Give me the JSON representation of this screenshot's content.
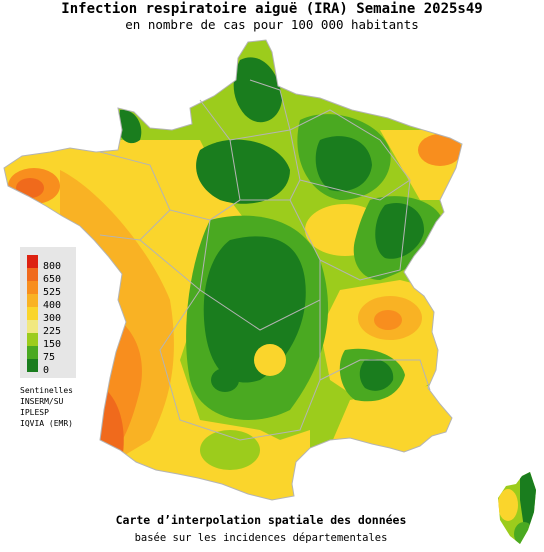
{
  "title": "Infection respiratoire aiguë (IRA) Semaine 2025s49",
  "subtitle": "en nombre de cas pour 100 000 habitants",
  "legend": [
    {
      "label": "800",
      "color": "#dd2211"
    },
    {
      "label": "650",
      "color": "#f06a1c"
    },
    {
      "label": "525",
      "color": "#f88e1e"
    },
    {
      "label": "400",
      "color": "#f9b224"
    },
    {
      "label": "300",
      "color": "#fad52c"
    },
    {
      "label": "225",
      "color": "#f1e880"
    },
    {
      "label": "150",
      "color": "#9ccc1c"
    },
    {
      "label": "75",
      "color": "#4aa921"
    },
    {
      "label": "0",
      "color": "#1a7d1e"
    }
  ],
  "sources": [
    "Sentinelles",
    "INSERM/SU",
    "IPLESP",
    "IQVIA (EMR)"
  ],
  "footer_title": "Carte d’interpolation spatiale des données",
  "footer_subtitle": "basée sur les incidences départementales",
  "colors": {
    "dark_green": "#1a7d1e",
    "green": "#4aa921",
    "light_green": "#9ccc1c",
    "yellow": "#fad52c",
    "light_yellow": "#f1e880",
    "light_orange": "#f9b224",
    "orange": "#f88e1e",
    "dark_orange": "#f06a1c",
    "red": "#dd2211",
    "borders": "#b4b4b4"
  }
}
